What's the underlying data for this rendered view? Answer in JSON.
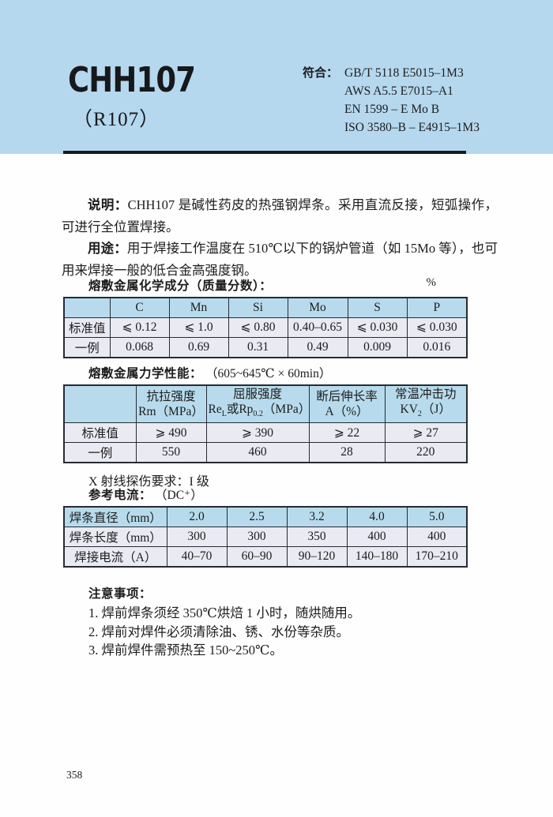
{
  "colors": {
    "band_blue": "#b5d8ee",
    "table_header_blue": "#b7dbec",
    "row_lavender": "#e9eaf2",
    "rule_black": "#191a1e"
  },
  "header": {
    "model": "CHH107",
    "alt_model": "（R107）",
    "standards_label": "符合：",
    "standards": [
      "GB/T 5118 E5015–1M3",
      "AWS A5.5 E7015–A1",
      "EN 1599 – E Mo B",
      "ISO 3580–B – E4915–1M3"
    ]
  },
  "description": {
    "shuoming_label": "说明：",
    "shuoming_text": "CHH107 是碱性药皮的热强钢焊条。采用直流反接，短弧操作，可进行全位置焊接。",
    "yongtu_label": "用途：",
    "yongtu_text": "用于焊接工作温度在 510℃以下的锅炉管道（如 15Mo 等），也可用来焊接一般的低合金高强度钢。"
  },
  "chemical": {
    "title": "熔敷金属化学成分（质量分数）：",
    "unit": "%",
    "columns": [
      "C",
      "Mn",
      "Si",
      "Mo",
      "S",
      "P"
    ],
    "rows": [
      {
        "label": "标准值",
        "values": [
          "⩽ 0.12",
          "⩽ 1.0",
          "⩽ 0.80",
          "0.40–0.65",
          "⩽ 0.030",
          "⩽ 0.030"
        ]
      },
      {
        "label": "一例",
        "values": [
          "0.068",
          "0.69",
          "0.31",
          "0.49",
          "0.009",
          "0.016"
        ]
      }
    ]
  },
  "mechanical": {
    "title": "熔敷金属力学性能：",
    "condition": "（605~645℃ × 60min）",
    "columns_html": [
      "抗拉强度<br>Rm（MPa）",
      "屈服强度<br>Re<sub>L</sub>或Rp<sub>0.2</sub>（MPa）",
      "断后伸长率<br>A（%）",
      "常温冲击功<br>KV<sub>2</sub>（J）"
    ],
    "rows": [
      {
        "label": "标准值",
        "values": [
          "⩾ 490",
          "⩾ 390",
          "⩾ 22",
          "⩾ 27"
        ]
      },
      {
        "label": "一例",
        "values": [
          "550",
          "460",
          "28",
          "220"
        ]
      }
    ],
    "xray": "X 射线探伤要求：I 级"
  },
  "current": {
    "title": "参考电流：",
    "condition": "（DC⁺）",
    "rows": [
      {
        "label": "焊条直径（mm）",
        "values": [
          "2.0",
          "2.5",
          "3.2",
          "4.0",
          "5.0"
        ]
      },
      {
        "label": "焊条长度（mm）",
        "values": [
          "300",
          "300",
          "350",
          "400",
          "400"
        ]
      },
      {
        "label": "焊接电流（A）",
        "values": [
          "40–70",
          "60–90",
          "90–120",
          "140–180",
          "170–210"
        ]
      }
    ]
  },
  "notes": {
    "title": "注意事项：",
    "items": [
      "1. 焊前焊条须经 350℃烘焙 1 小时，随烘随用。",
      "2. 焊前对焊件必须清除油、锈、水份等杂质。",
      "3. 焊前焊件需预热至 150~250℃。"
    ]
  },
  "page": {
    "number": "358"
  }
}
